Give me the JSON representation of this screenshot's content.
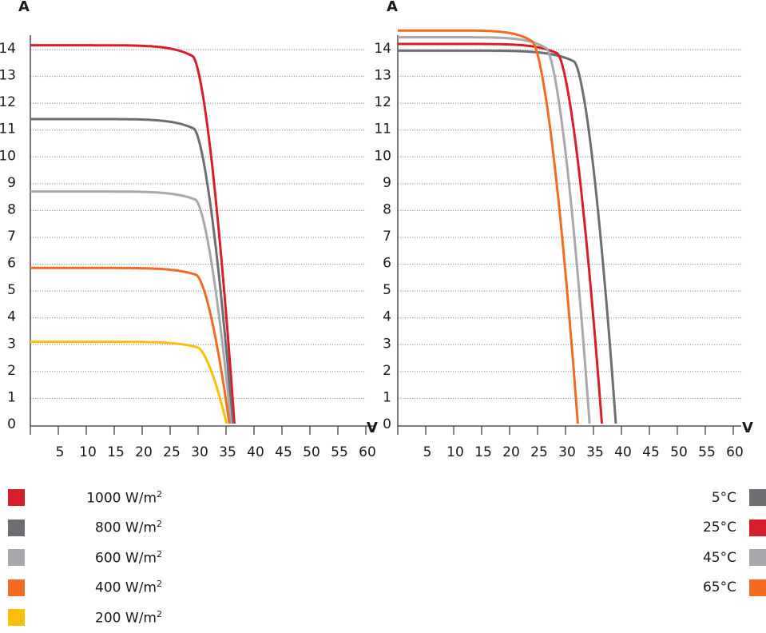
{
  "chart_data": [
    {
      "type": "line",
      "id": "irradiance",
      "title": "",
      "ylabel": "A",
      "xlabel": "V",
      "xlim": [
        0,
        60
      ],
      "ylim": [
        0,
        14
      ],
      "xticks": [
        5,
        10,
        15,
        20,
        25,
        30,
        35,
        40,
        45,
        50,
        55,
        60
      ],
      "yticks": [
        0,
        1,
        2,
        3,
        4,
        5,
        6,
        7,
        8,
        9,
        10,
        11,
        12,
        13,
        14
      ],
      "grid": "horizontal dotted",
      "series": [
        {
          "name": "1000 W/m²",
          "label": "1000 W/m",
          "sup": "2",
          "color": "#d71e2b",
          "isc": 14.1,
          "voc": 36.5,
          "knee_v": 29,
          "knee_i": 13.7
        },
        {
          "name": "800 W/m²",
          "label": "800 W/m",
          "sup": "2",
          "color": "#6d6e71",
          "isc": 11.35,
          "voc": 36.2,
          "knee_v": 29.2,
          "knee_i": 11.0
        },
        {
          "name": "600 W/m²",
          "label": "600 W/m",
          "sup": "2",
          "color": "#a7a9ac",
          "isc": 8.65,
          "voc": 35.9,
          "knee_v": 29.5,
          "knee_i": 8.35
        },
        {
          "name": "400 W/m²",
          "label": "400 W/m",
          "sup": "2",
          "color": "#f26b21",
          "isc": 5.8,
          "voc": 35.6,
          "knee_v": 29.6,
          "knee_i": 5.55
        },
        {
          "name": "200 W/m²",
          "label": "200 W/m",
          "sup": "2",
          "color": "#fcbf0a",
          "isc": 3.05,
          "voc": 35.1,
          "knee_v": 29.8,
          "knee_i": 2.85
        }
      ]
    },
    {
      "type": "line",
      "id": "temperature",
      "title": "",
      "ylabel": "A",
      "xlabel": "V",
      "xlim": [
        0,
        60
      ],
      "ylim": [
        0,
        14
      ],
      "xticks": [
        5,
        10,
        15,
        20,
        25,
        30,
        35,
        40,
        45,
        50,
        55,
        60
      ],
      "yticks": [
        0,
        1,
        2,
        3,
        4,
        5,
        6,
        7,
        8,
        9,
        10,
        11,
        12,
        13,
        14
      ],
      "grid": "horizontal dotted",
      "series": [
        {
          "name": "5°C",
          "label": "5°C",
          "color": "#6d6e71",
          "isc": 13.9,
          "voc": 39.0,
          "knee_v": 31.5,
          "knee_i": 13.5
        },
        {
          "name": "25°C",
          "label": "25°C",
          "color": "#d71e2b",
          "isc": 14.15,
          "voc": 36.5,
          "knee_v": 28.5,
          "knee_i": 13.8
        },
        {
          "name": "45°C",
          "label": "45°C",
          "color": "#a7a9ac",
          "isc": 14.4,
          "voc": 34.3,
          "knee_v": 26.5,
          "knee_i": 14.0
        },
        {
          "name": "65°C",
          "label": "65°C",
          "color": "#f26b21",
          "isc": 14.65,
          "voc": 32.2,
          "knee_v": 24.0,
          "knee_i": 14.25
        }
      ]
    }
  ]
}
